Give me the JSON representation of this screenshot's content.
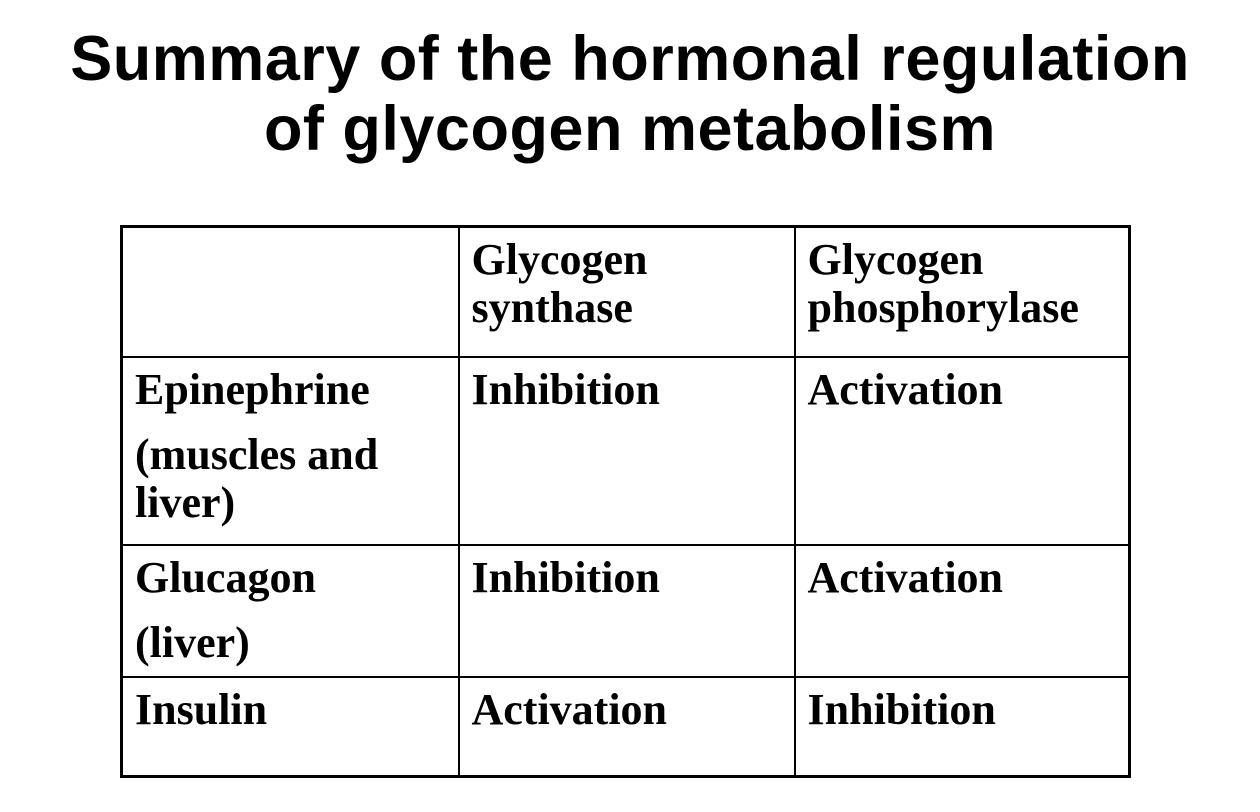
{
  "slide": {
    "title": "Summary of the hormonal regulation of glycogen metabolism",
    "title_lines": [
      "Summary of the hormonal regulation",
      "of glycogen metabolism"
    ]
  },
  "table": {
    "headers": [
      "",
      "Glycogen synthase",
      "Glycogen phosphorylase"
    ],
    "header_lines": {
      "col2": "Glycogen synthase",
      "col3": "Glycogen phosphorylase"
    },
    "rows": [
      {
        "hormone": "Epinephrine (muscles and liver)",
        "hormone_lines": [
          "Epinephrine",
          "(muscles and liver)"
        ],
        "glycogen_synthase": "Inhibition",
        "glycogen_phosphorylase": "Activation"
      },
      {
        "hormone": "Glucagon (liver)",
        "hormone_lines": [
          "Glucagon",
          "(liver)"
        ],
        "glycogen_synthase": "Inhibition",
        "glycogen_phosphorylase": "Activation"
      },
      {
        "hormone": "Insulin",
        "hormone_lines": [
          "Insulin"
        ],
        "glycogen_synthase": "Activation",
        "glycogen_phosphorylase": "Inhibition"
      }
    ]
  },
  "colors": {
    "background": "#ffffff",
    "text": "#000000",
    "border": "#000000"
  }
}
